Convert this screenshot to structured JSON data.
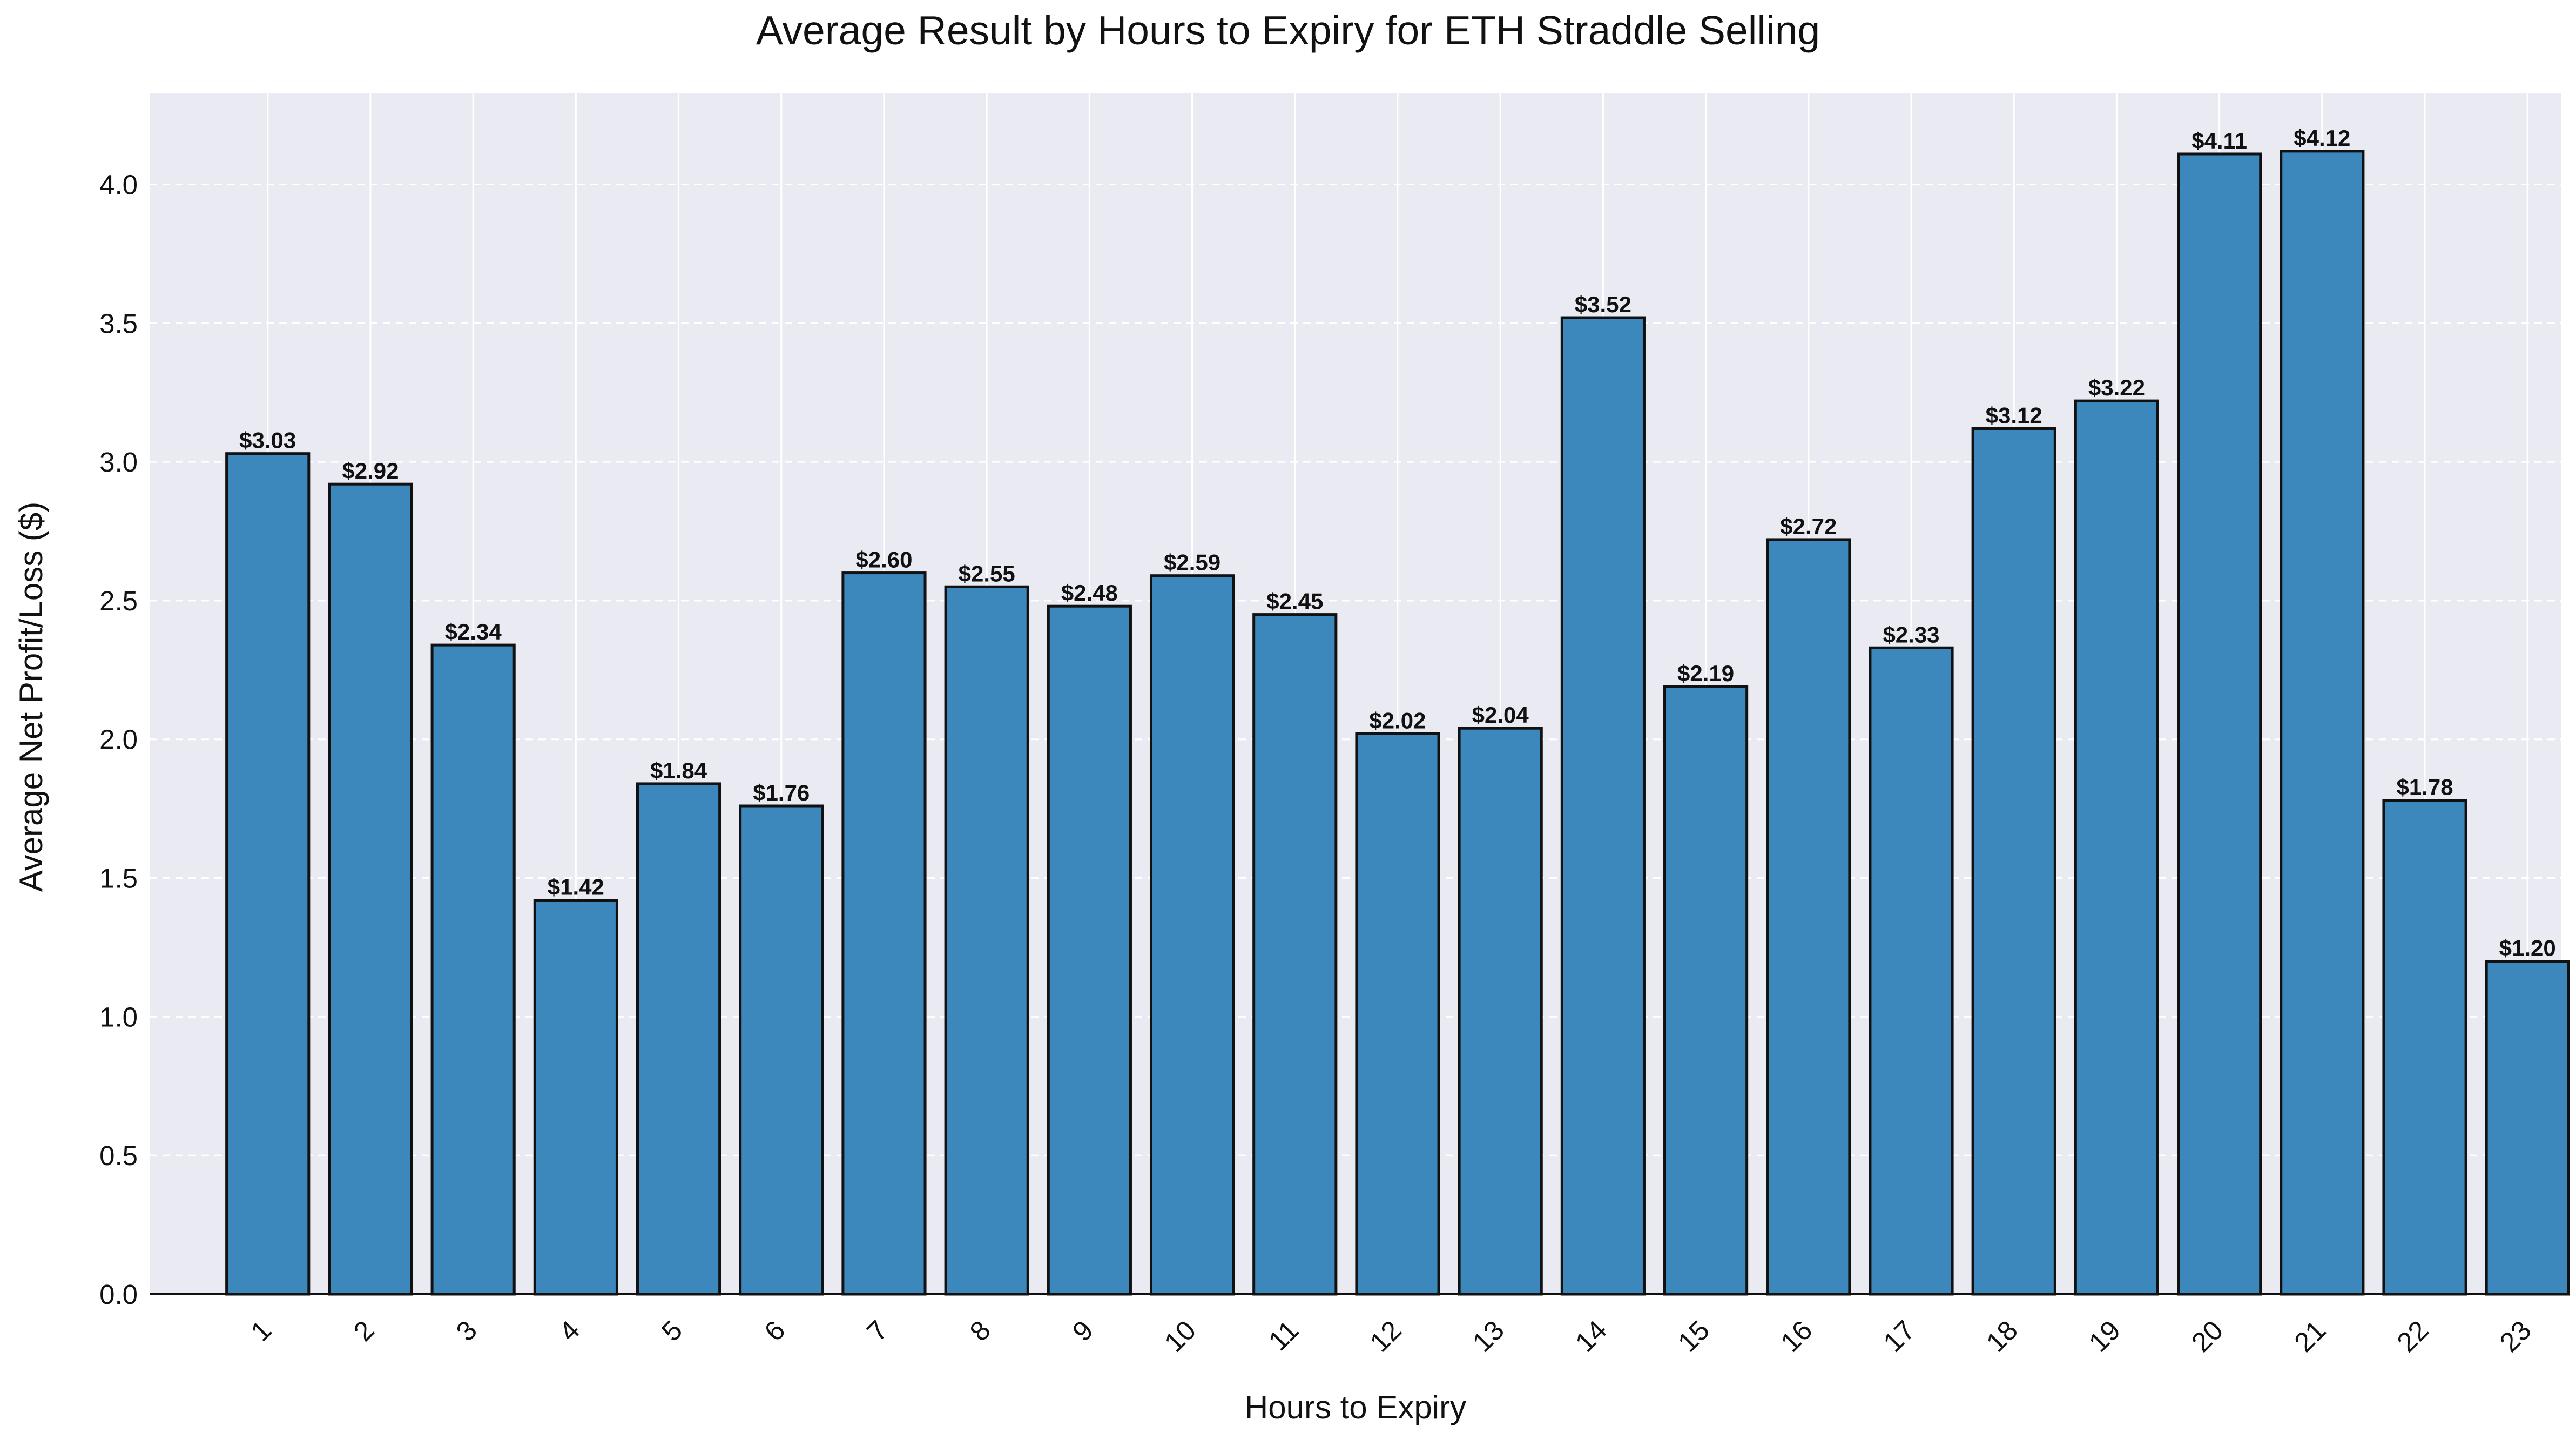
{
  "chart_data": {
    "type": "bar",
    "title": "Average Result by Hours to Expiry for ETH Straddle Selling",
    "xlabel": "Hours to Expiry",
    "ylabel": "Average Net Profit/Loss ($)",
    "categories": [
      "1",
      "2",
      "3",
      "4",
      "5",
      "6",
      "7",
      "8",
      "9",
      "10",
      "11",
      "12",
      "13",
      "14",
      "15",
      "16",
      "17",
      "18",
      "19",
      "20",
      "21",
      "22",
      "23"
    ],
    "values": [
      3.03,
      2.92,
      2.34,
      1.42,
      1.84,
      1.76,
      2.6,
      2.55,
      2.48,
      2.59,
      2.45,
      2.02,
      2.04,
      3.52,
      2.19,
      2.72,
      2.33,
      3.12,
      3.22,
      4.11,
      4.12,
      1.78,
      1.2
    ],
    "data_labels": [
      "$3.03",
      "$2.92",
      "$2.34",
      "$1.42",
      "$1.84",
      "$1.76",
      "$2.60",
      "$2.55",
      "$2.48",
      "$2.59",
      "$2.45",
      "$2.02",
      "$2.04",
      "$3.52",
      "$2.19",
      "$2.72",
      "$2.33",
      "$3.12",
      "$3.22",
      "$4.11",
      "$4.12",
      "$1.78",
      "$1.20"
    ],
    "ylim": [
      0,
      4.33
    ],
    "yticks": [
      "0.0",
      "0.5",
      "1.0",
      "1.5",
      "2.0",
      "2.5",
      "3.0",
      "3.5",
      "4.0"
    ],
    "grid": true,
    "x_tick_rotation": 45,
    "colors": {
      "bar": "#3c88bd",
      "bar_edge": "#111111",
      "plot_background": "#eaeaf2",
      "grid": "#ffffff",
      "text": "#111111"
    }
  }
}
